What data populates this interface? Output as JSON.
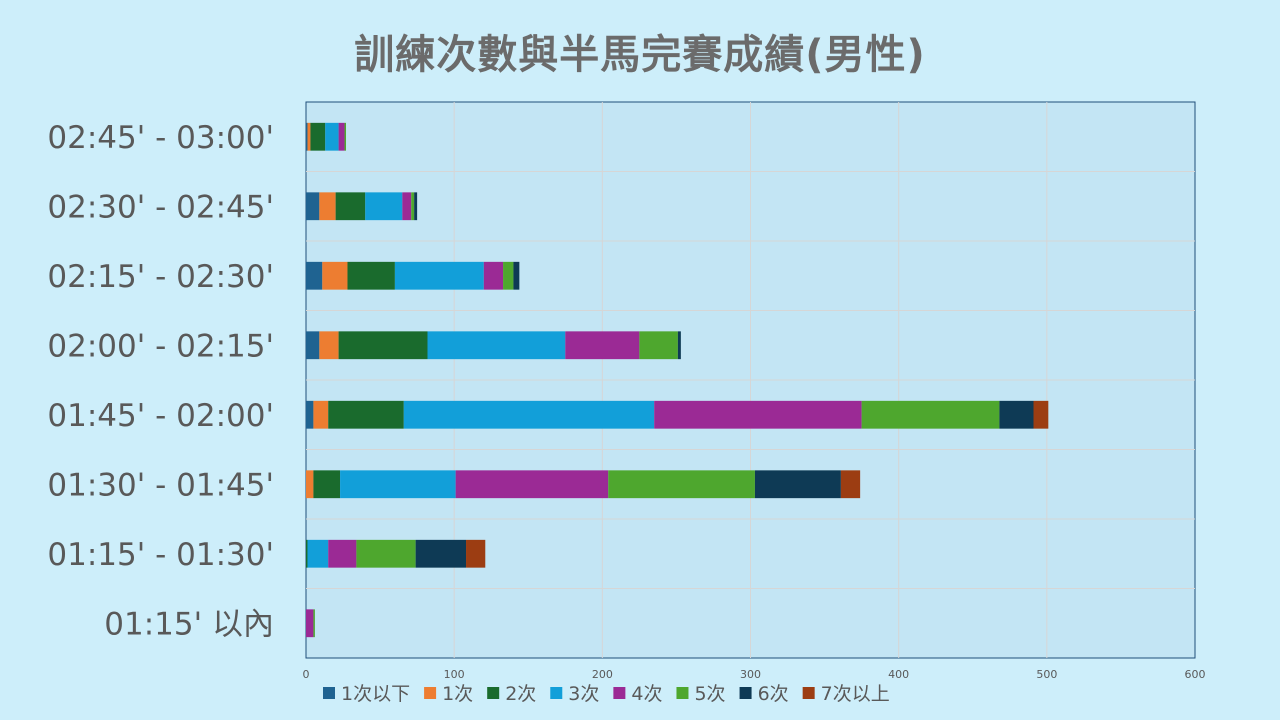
{
  "chart_data": {
    "type": "bar",
    "orientation": "horizontal",
    "stacked": true,
    "title": "訓練次數與半馬完賽成績(男性)",
    "categories": [
      "02:45' - 03:00'",
      "02:30' - 02:45'",
      "02:15' -  02:30'",
      "02:00' - 02:15'",
      "01:45' - 02:00'",
      "01:30' - 01:45'",
      "01:15' - 01:30'",
      "01:15' 以內"
    ],
    "xlim": [
      0,
      600
    ],
    "xticks": [
      "0",
      "100",
      "200",
      "300",
      "400",
      "500",
      "600"
    ],
    "grid": true,
    "legend_position": "bottom",
    "series": [
      {
        "name": "1次以下",
        "color": "#1f6391",
        "values": [
          1,
          9,
          11,
          9,
          5,
          0,
          0,
          0
        ]
      },
      {
        "name": "1次",
        "color": "#ed7d31",
        "values": [
          2,
          11,
          17,
          13,
          10,
          5,
          0,
          0
        ]
      },
      {
        "name": "2次",
        "color": "#1a6b2d",
        "values": [
          10,
          20,
          32,
          60,
          51,
          18,
          1,
          0
        ]
      },
      {
        "name": "3次",
        "color": "#129fd9",
        "values": [
          9,
          25,
          60,
          93,
          169,
          78,
          14,
          0
        ]
      },
      {
        "name": "4次",
        "color": "#9b2a95",
        "values": [
          4,
          6,
          13,
          50,
          140,
          103,
          19,
          5
        ]
      },
      {
        "name": "5次",
        "color": "#4ea72e",
        "values": [
          1,
          2,
          7,
          26,
          93,
          99,
          40,
          1
        ]
      },
      {
        "name": "6次",
        "color": "#0e3a55",
        "values": [
          0,
          2,
          4,
          2,
          23,
          58,
          34,
          0
        ]
      },
      {
        "name": "7次以上",
        "color": "#9c3d12",
        "values": [
          0,
          0,
          0,
          0,
          10,
          13,
          13,
          0
        ]
      }
    ]
  }
}
